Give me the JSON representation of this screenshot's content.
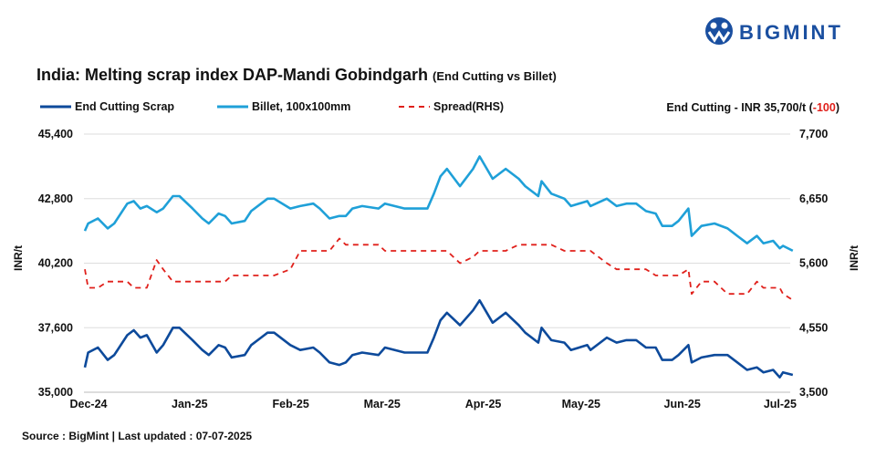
{
  "brand": {
    "name": "BIGMINT",
    "color": "#1a4fa0"
  },
  "header": {
    "title": "India: Melting scrap index DAP-Mandi Gobindgarh",
    "subtitle": "(End Cutting vs Billet)",
    "price_note_prefix": "End Cutting - INR 35,700/t (",
    "price_note_change": "-100",
    "price_note_suffix": ")"
  },
  "footer": {
    "source": "Source : BigMint | Last updated : 07-07-2025"
  },
  "chart_data": {
    "type": "line",
    "title": "India: Melting scrap index DAP-Mandi Gobindgarh (End Cutting vs Billet)",
    "ylabel": "INR/t",
    "y2label": "INR/t",
    "ylim": [
      35000,
      45400
    ],
    "y2lim": [
      3500,
      7700
    ],
    "yticks": [
      "35,000",
      "37,600",
      "40,200",
      "42,800",
      "45,400"
    ],
    "y2ticks": [
      "3,500",
      "4,550",
      "5,600",
      "6,650",
      "7,700"
    ],
    "xticks": [
      {
        "date": "2024-12-01",
        "label": "Dec-24"
      },
      {
        "date": "2025-01-01",
        "label": "Jan-25"
      },
      {
        "date": "2025-02-01",
        "label": "Feb-25"
      },
      {
        "date": "2025-03-01",
        "label": "Mar-25"
      },
      {
        "date": "2025-04-01",
        "label": "Apr-25"
      },
      {
        "date": "2025-05-01",
        "label": "May-25"
      },
      {
        "date": "2025-06-01",
        "label": "Jun-25"
      },
      {
        "date": "2025-07-01",
        "label": "Jul-25"
      }
    ],
    "grid": true,
    "legend_placement": "top-left",
    "x": [
      "2024-12-01",
      "2024-12-02",
      "2024-12-05",
      "2024-12-08",
      "2024-12-10",
      "2024-12-14",
      "2024-12-16",
      "2024-12-18",
      "2024-12-20",
      "2024-12-23",
      "2024-12-25",
      "2024-12-28",
      "2024-12-30",
      "2025-01-03",
      "2025-01-06",
      "2025-01-08",
      "2025-01-11",
      "2025-01-13",
      "2025-01-15",
      "2025-01-19",
      "2025-01-21",
      "2025-01-24",
      "2025-01-26",
      "2025-01-28",
      "2025-02-02",
      "2025-02-05",
      "2025-02-09",
      "2025-02-11",
      "2025-02-14",
      "2025-02-17",
      "2025-02-19",
      "2025-02-21",
      "2025-02-24",
      "2025-03-01",
      "2025-03-03",
      "2025-03-09",
      "2025-03-16",
      "2025-03-18",
      "2025-03-20",
      "2025-03-22",
      "2025-03-26",
      "2025-03-30",
      "2025-04-01",
      "2025-04-05",
      "2025-04-09",
      "2025-04-13",
      "2025-04-15",
      "2025-04-19",
      "2025-04-20",
      "2025-04-23",
      "2025-04-27",
      "2025-04-29",
      "2025-05-04",
      "2025-05-05",
      "2025-05-10",
      "2025-05-13",
      "2025-05-16",
      "2025-05-19",
      "2025-05-22",
      "2025-05-25",
      "2025-05-27",
      "2025-05-30",
      "2025-06-01",
      "2025-06-04",
      "2025-06-05",
      "2025-06-08",
      "2025-06-12",
      "2025-06-16",
      "2025-06-19",
      "2025-06-22",
      "2025-06-25",
      "2025-06-27",
      "2025-06-30",
      "2025-07-02",
      "2025-07-03",
      "2025-07-06"
    ],
    "series": [
      {
        "name": "End Cutting Scrap",
        "axis": "left",
        "color": "#0d4a9b",
        "style": "solid",
        "values": [
          36000,
          36600,
          36800,
          36300,
          36500,
          37300,
          37500,
          37200,
          37300,
          36600,
          36900,
          37600,
          37600,
          37100,
          36700,
          36500,
          36900,
          36800,
          36400,
          36500,
          36900,
          37200,
          37400,
          37400,
          36900,
          36700,
          36800,
          36600,
          36200,
          36100,
          36200,
          36500,
          36600,
          36500,
          36800,
          36600,
          36600,
          37200,
          37900,
          38200,
          37700,
          38300,
          38700,
          37800,
          38200,
          37700,
          37400,
          37000,
          37600,
          37100,
          37000,
          36700,
          36900,
          36700,
          37200,
          37000,
          37100,
          37100,
          36800,
          36800,
          36300,
          36300,
          36500,
          36900,
          36200,
          36400,
          36500,
          36500,
          36200,
          35900,
          36000,
          35800,
          35900,
          35600,
          35800,
          35700
        ]
      },
      {
        "name": "Billet, 100x100mm",
        "axis": "left",
        "color": "#1fa0d8",
        "style": "solid",
        "values": [
          41500,
          41800,
          42000,
          41600,
          41800,
          42600,
          42700,
          42400,
          42500,
          42250,
          42400,
          42900,
          42900,
          42400,
          42000,
          41800,
          42200,
          42100,
          41800,
          41900,
          42300,
          42600,
          42800,
          42800,
          42400,
          42500,
          42600,
          42400,
          42000,
          42100,
          42100,
          42400,
          42500,
          42400,
          42600,
          42400,
          42400,
          43000,
          43700,
          44000,
          43300,
          44000,
          44500,
          43600,
          44000,
          43600,
          43300,
          42900,
          43500,
          43000,
          42800,
          42500,
          42700,
          42500,
          42800,
          42500,
          42600,
          42600,
          42300,
          42200,
          41700,
          41700,
          41900,
          42400,
          41300,
          41700,
          41800,
          41600,
          41300,
          41000,
          41300,
          41000,
          41100,
          40800,
          40900,
          40700
        ]
      },
      {
        "name": "Spread(RHS)",
        "axis": "right",
        "color": "#e0201b",
        "style": "dashed",
        "values": [
          5500,
          5200,
          5200,
          5300,
          5300,
          5300,
          5200,
          5200,
          5200,
          5650,
          5500,
          5300,
          5300,
          5300,
          5300,
          5300,
          5300,
          5300,
          5400,
          5400,
          5400,
          5400,
          5400,
          5400,
          5500,
          5800,
          5800,
          5800,
          5800,
          6000,
          5900,
          5900,
          5900,
          5900,
          5800,
          5800,
          5800,
          5800,
          5800,
          5800,
          5600,
          5700,
          5800,
          5800,
          5800,
          5900,
          5900,
          5900,
          5900,
          5900,
          5800,
          5800,
          5800,
          5800,
          5600,
          5500,
          5500,
          5500,
          5500,
          5400,
          5400,
          5400,
          5400,
          5500,
          5100,
          5300,
          5300,
          5100,
          5100,
          5100,
          5300,
          5200,
          5200,
          5200,
          5100,
          5000
        ]
      }
    ]
  }
}
